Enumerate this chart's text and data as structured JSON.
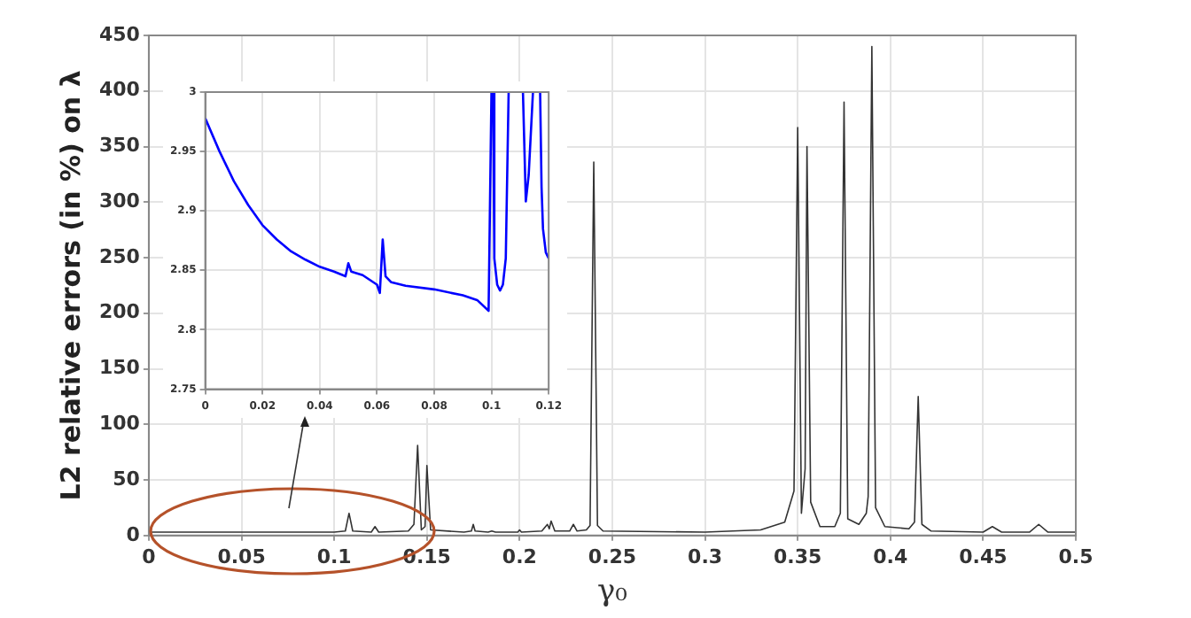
{
  "chart_data": [
    {
      "type": "line",
      "xlabel": "γ₀",
      "ylabel": "L2 relative errors (in %) on λ",
      "xlim": [
        0,
        0.5
      ],
      "xticks": [
        0,
        0.05,
        0.1,
        0.15,
        0.2,
        0.25,
        0.3,
        0.35,
        0.4,
        0.45,
        0.5
      ],
      "ylim": [
        0,
        450
      ],
      "yticks": [
        0,
        50,
        100,
        150,
        200,
        250,
        300,
        350,
        400,
        450
      ],
      "grid": true,
      "legend": false,
      "series": [
        {
          "color": "#333333",
          "x": [
            0,
            0.05,
            0.1,
            0.106,
            0.108,
            0.11,
            0.12,
            0.122,
            0.124,
            0.14,
            0.143,
            0.145,
            0.147,
            0.149,
            0.15,
            0.152,
            0.17,
            0.174,
            0.175,
            0.176,
            0.183,
            0.185,
            0.187,
            0.199,
            0.2,
            0.201,
            0.212,
            0.215,
            0.216,
            0.217,
            0.219,
            0.227,
            0.229,
            0.231,
            0.236,
            0.238,
            0.24,
            0.242,
            0.245,
            0.3,
            0.33,
            0.343,
            0.348,
            0.35,
            0.352,
            0.354,
            0.355,
            0.357,
            0.362,
            0.37,
            0.373,
            0.375,
            0.377,
            0.383,
            0.387,
            0.388,
            0.39,
            0.392,
            0.397,
            0.41,
            0.413,
            0.415,
            0.417,
            0.422,
            0.45,
            0.455,
            0.46,
            0.475,
            0.48,
            0.485,
            0.5
          ],
          "values": [
            3,
            3,
            3,
            4,
            20,
            4,
            3,
            8,
            3,
            4,
            10,
            81,
            5,
            8,
            63,
            5,
            3,
            4,
            10,
            4,
            3,
            4,
            3,
            3,
            5,
            3,
            4,
            10,
            6,
            13,
            4,
            4,
            10,
            4,
            5,
            9,
            336,
            9,
            4,
            3,
            5,
            12,
            40,
            367,
            20,
            60,
            350,
            30,
            8,
            8,
            20,
            390,
            15,
            10,
            20,
            35,
            440,
            25,
            8,
            6,
            12,
            125,
            10,
            4,
            3,
            8,
            3,
            3,
            10,
            3,
            3
          ]
        }
      ]
    },
    {
      "type": "line",
      "xlim": [
        0,
        0.12
      ],
      "xticks": [
        0,
        0.02,
        0.04,
        0.06,
        0.08,
        0.1,
        0.12
      ],
      "ylim": [
        2.75,
        3
      ],
      "yticks": [
        2.75,
        2.8,
        2.85,
        2.9,
        2.95,
        3
      ],
      "grid": true,
      "legend": false,
      "series": [
        {
          "color": "#0000ff",
          "x": [
            0,
            0.005,
            0.01,
            0.015,
            0.02,
            0.025,
            0.03,
            0.035,
            0.04,
            0.045,
            0.049,
            0.05,
            0.051,
            0.055,
            0.06,
            0.061,
            0.062,
            0.063,
            0.065,
            0.07,
            0.08,
            0.09,
            0.095,
            0.099,
            0.1,
            0.1003,
            0.1006,
            0.101,
            0.102,
            0.103,
            0.104,
            0.105,
            0.106,
            0.108,
            0.111,
            0.112,
            0.113,
            0.1145,
            0.116,
            0.117,
            0.1175,
            0.118,
            0.119,
            0.12
          ],
          "values": [
            2.978,
            2.95,
            2.925,
            2.905,
            2.888,
            2.876,
            2.866,
            2.859,
            2.853,
            2.849,
            2.845,
            2.856,
            2.849,
            2.846,
            2.838,
            2.831,
            2.876,
            2.845,
            2.84,
            2.837,
            2.834,
            2.829,
            2.825,
            2.816,
            3,
            null,
            3,
            2.86,
            2.838,
            2.833,
            2.838,
            2.86,
            3,
            null,
            3,
            2.908,
            2.93,
            3,
            null,
            3,
            2.92,
            2.885,
            2.865,
            2.86
          ]
        }
      ]
    }
  ]
}
